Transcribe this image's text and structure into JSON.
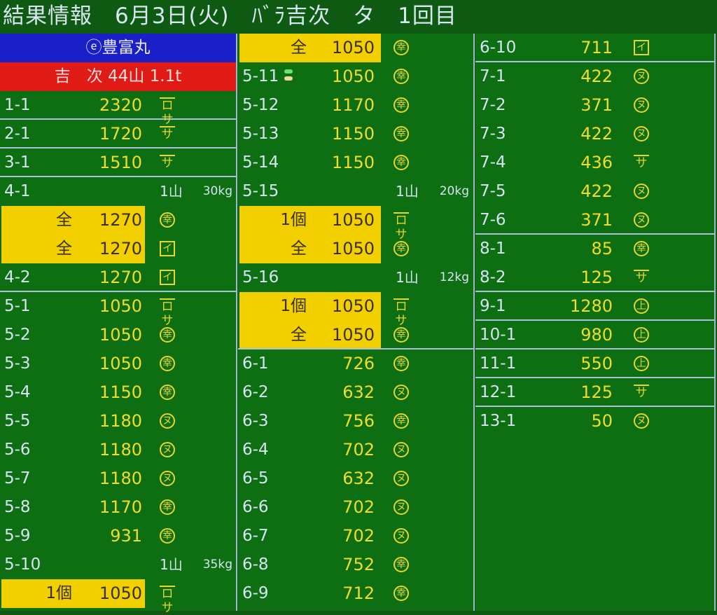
{
  "header": {
    "title": "結果情報　6月3日(火)　ﾊﾞﾗ吉次　タ　1回目"
  },
  "marks": {
    "kou": {
      "char": "幸",
      "shape": "circle",
      "icon": "kou-circle-icon"
    },
    "nu": {
      "char": "ヌ",
      "shape": "circle",
      "icon": "nu-circle-icon"
    },
    "jou": {
      "char": "上",
      "shape": "circle",
      "icon": "jou-circle-icon"
    },
    "i": {
      "char": "イ",
      "shape": "box",
      "icon": "i-box-icon"
    },
    "sa": {
      "char": "サ",
      "shape": "bar",
      "icon": "sa-bar-icon"
    },
    "rosa": {
      "char": "ロサ",
      "shape": "bar",
      "icon": "rosa-bar-icon"
    }
  },
  "colors": {
    "background": "#0d6e12",
    "highlight": "#f2d000",
    "banner_ship": "#1a1fc8",
    "banner_fish": "#e01a14",
    "value": "#f0dc2a"
  },
  "columns": [
    {
      "rows": [
        {
          "banner": "ⓔ豊富丸",
          "color": "blue"
        },
        {
          "banner": "吉　次 44山 1.1t",
          "color": "red"
        },
        {
          "label": "1-1",
          "value": "2320",
          "mark": "rosa",
          "sep": true
        },
        {
          "label": "2-1",
          "value": "1720",
          "mark": "sa",
          "sep": true
        },
        {
          "label": "3-1",
          "value": "1510",
          "mark": "sa",
          "sep": true
        },
        {
          "label": "4-1",
          "count": "1山",
          "weight": "30kg"
        },
        {
          "qty": "全",
          "value": "1270",
          "mark": "kou",
          "yellow": true
        },
        {
          "qty": "全",
          "value": "1270",
          "mark": "i",
          "yellow": true
        },
        {
          "label": "4-2",
          "value": "1270",
          "mark": "i",
          "sep": true
        },
        {
          "label": "5-1",
          "value": "1050",
          "mark": "rosa"
        },
        {
          "label": "5-2",
          "value": "1050",
          "mark": "kou"
        },
        {
          "label": "5-3",
          "value": "1050",
          "mark": "kou"
        },
        {
          "label": "5-4",
          "value": "1150",
          "mark": "kou"
        },
        {
          "label": "5-5",
          "value": "1180",
          "mark": "nu"
        },
        {
          "label": "5-6",
          "value": "1180",
          "mark": "nu"
        },
        {
          "label": "5-7",
          "value": "1180",
          "mark": "nu"
        },
        {
          "label": "5-8",
          "value": "1170",
          "mark": "kou"
        },
        {
          "label": "5-9",
          "value": "931",
          "mark": "kou"
        },
        {
          "label": "5-10",
          "count": "1山",
          "weight": "35kg"
        },
        {
          "qty": "1個",
          "value": "1050",
          "mark": "rosa",
          "yellow": true
        }
      ]
    },
    {
      "rows": [
        {
          "qty": "全",
          "value": "1050",
          "mark": "kou",
          "yellow": true
        },
        {
          "label": "5-11",
          "value": "1050",
          "mark": "kou",
          "lights": true
        },
        {
          "label": "5-12",
          "value": "1170",
          "mark": "kou"
        },
        {
          "label": "5-13",
          "value": "1150",
          "mark": "kou"
        },
        {
          "label": "5-14",
          "value": "1150",
          "mark": "kou"
        },
        {
          "label": "5-15",
          "count": "1山",
          "weight": "20kg"
        },
        {
          "qty": "1個",
          "value": "1050",
          "mark": "rosa",
          "yellow": true
        },
        {
          "qty": "全",
          "value": "1050",
          "mark": "kou",
          "yellow": true
        },
        {
          "label": "5-16",
          "count": "1山",
          "weight": "12kg"
        },
        {
          "qty": "1個",
          "value": "1050",
          "mark": "rosa",
          "yellow": true
        },
        {
          "qty": "全",
          "value": "1050",
          "mark": "kou",
          "yellow": true,
          "sep": true
        },
        {
          "label": "6-1",
          "value": "726",
          "mark": "kou"
        },
        {
          "label": "6-2",
          "value": "632",
          "mark": "nu"
        },
        {
          "label": "6-3",
          "value": "756",
          "mark": "kou"
        },
        {
          "label": "6-4",
          "value": "702",
          "mark": "nu"
        },
        {
          "label": "6-5",
          "value": "632",
          "mark": "nu"
        },
        {
          "label": "6-6",
          "value": "702",
          "mark": "nu"
        },
        {
          "label": "6-7",
          "value": "702",
          "mark": "nu"
        },
        {
          "label": "6-8",
          "value": "752",
          "mark": "kou"
        },
        {
          "label": "6-9",
          "value": "712",
          "mark": "kou"
        }
      ]
    },
    {
      "rows": [
        {
          "label": "6-10",
          "value": "711",
          "mark": "i",
          "sep": true
        },
        {
          "label": "7-1",
          "value": "422",
          "mark": "nu"
        },
        {
          "label": "7-2",
          "value": "371",
          "mark": "nu"
        },
        {
          "label": "7-3",
          "value": "422",
          "mark": "nu"
        },
        {
          "label": "7-4",
          "value": "436",
          "mark": "sa"
        },
        {
          "label": "7-5",
          "value": "422",
          "mark": "nu"
        },
        {
          "label": "7-6",
          "value": "371",
          "mark": "nu",
          "sep": true
        },
        {
          "label": "8-1",
          "value": "85",
          "mark": "kou"
        },
        {
          "label": "8-2",
          "value": "125",
          "mark": "sa",
          "sep": true
        },
        {
          "label": "9-1",
          "value": "1280",
          "mark": "jou",
          "sep": true
        },
        {
          "label": "10-1",
          "value": "980",
          "mark": "jou",
          "sep": true
        },
        {
          "label": "11-1",
          "value": "550",
          "mark": "jou",
          "sep": true
        },
        {
          "label": "12-1",
          "value": "125",
          "mark": "sa",
          "sep": true
        },
        {
          "label": "13-1",
          "value": "50",
          "mark": "nu"
        }
      ]
    }
  ]
}
